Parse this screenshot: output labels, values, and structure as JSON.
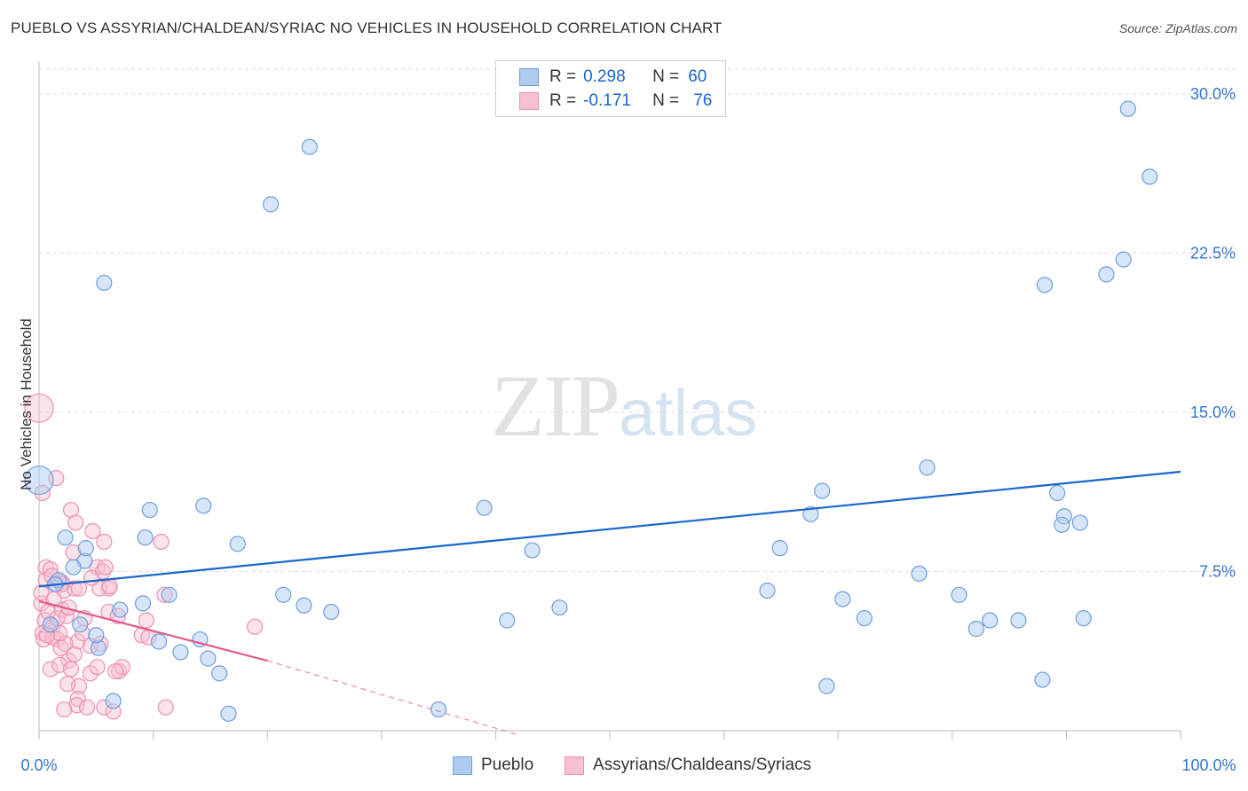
{
  "title": "PUEBLO VS ASSYRIAN/CHALDEAN/SYRIAC NO VEHICLES IN HOUSEHOLD CORRELATION CHART",
  "source": "Source: ZipAtlas.com",
  "watermark": {
    "part1": "ZIP",
    "part2": "atlas"
  },
  "legend": {
    "rows": [
      {
        "r_label": "R =",
        "r_value": "0.298",
        "n_label": "N =",
        "n_value": "60"
      },
      {
        "r_label": "R =",
        "r_value": "-0.171",
        "n_label": "N =",
        "n_value": "76"
      }
    ]
  },
  "bottom_legend": {
    "series1": "Pueblo",
    "series2": "Assyrians/Chaldeans/Syriacs"
  },
  "colors": {
    "pueblo": "#1a66cc",
    "pueblo_fill": "#aecbf0",
    "pueblo_stroke": "#6f9fdc",
    "assyrian": "#e05a8c",
    "assyrian_fill": "#f7c1d3",
    "assyrian_stroke": "#ee90b0",
    "grid": "#dddddd",
    "tick_label": "#3375cc"
  },
  "chart_data": {
    "type": "scatter",
    "title": "PUEBLO VS ASSYRIAN/CHALDEAN/SYRIAC NO VEHICLES IN HOUSEHOLD CORRELATION CHART",
    "xlabel": "",
    "ylabel": "No Vehicles in Household",
    "xlim": [
      0,
      100
    ],
    "ylim": [
      0,
      31.5
    ],
    "x_tick_labels": [
      "0.0%",
      "100.0%"
    ],
    "y_ticks": [
      7.5,
      15.0,
      22.5,
      30.0
    ],
    "y_tick_labels": [
      "7.5%",
      "15.0%",
      "22.5%",
      "30.0%"
    ],
    "grid": "horizontal dashed",
    "legend_position": "top-center",
    "series": [
      {
        "name": "Pueblo",
        "r": 0.298,
        "n": 60,
        "trend": {
          "x": [
            0,
            100
          ],
          "y": [
            6.8,
            12.2
          ]
        },
        "points": [
          [
            0,
            11.8
          ],
          [
            5.7,
            21.1
          ],
          [
            20.3,
            24.8
          ],
          [
            23.7,
            27.5
          ],
          [
            95.4,
            29.3
          ],
          [
            97.3,
            26.1
          ],
          [
            95.0,
            22.2
          ],
          [
            93.5,
            21.5
          ],
          [
            88.1,
            21.0
          ],
          [
            2.3,
            9.1
          ],
          [
            1.7,
            7.1
          ],
          [
            1.4,
            6.9
          ],
          [
            4.0,
            8.0
          ],
          [
            4.1,
            8.6
          ],
          [
            3.0,
            7.7
          ],
          [
            1.0,
            5.0
          ],
          [
            3.6,
            5.0
          ],
          [
            5.2,
            3.9
          ],
          [
            6.5,
            1.4
          ],
          [
            7.1,
            5.7
          ],
          [
            9.1,
            6.0
          ],
          [
            9.3,
            9.1
          ],
          [
            9.7,
            10.4
          ],
          [
            10.5,
            4.2
          ],
          [
            11.4,
            6.4
          ],
          [
            12.4,
            3.7
          ],
          [
            14.1,
            4.3
          ],
          [
            14.4,
            10.6
          ],
          [
            14.8,
            3.4
          ],
          [
            15.8,
            2.7
          ],
          [
            16.6,
            0.8
          ],
          [
            17.4,
            8.8
          ],
          [
            21.4,
            6.4
          ],
          [
            23.2,
            5.9
          ],
          [
            25.6,
            5.6
          ],
          [
            35.0,
            1.0
          ],
          [
            39.0,
            10.5
          ],
          [
            41.0,
            5.2
          ],
          [
            43.2,
            8.5
          ],
          [
            45.6,
            5.8
          ],
          [
            63.8,
            6.6
          ],
          [
            64.9,
            8.6
          ],
          [
            67.6,
            10.2
          ],
          [
            68.6,
            11.3
          ],
          [
            69.0,
            2.1
          ],
          [
            70.4,
            6.2
          ],
          [
            72.3,
            5.3
          ],
          [
            77.1,
            7.4
          ],
          [
            77.8,
            12.4
          ],
          [
            80.6,
            6.4
          ],
          [
            82.1,
            4.8
          ],
          [
            83.3,
            5.2
          ],
          [
            85.8,
            5.2
          ],
          [
            87.9,
            2.4
          ],
          [
            89.2,
            11.2
          ],
          [
            89.8,
            10.1
          ],
          [
            89.6,
            9.7
          ],
          [
            91.2,
            9.8
          ],
          [
            91.5,
            5.3
          ],
          [
            5.0,
            4.5
          ]
        ]
      },
      {
        "name": "Assyrians/Chaldeans/Syriacs",
        "r": -0.171,
        "n": 76,
        "trend": {
          "x": [
            0,
            20
          ],
          "y": [
            6.1,
            3.3
          ]
        },
        "trend_dashed": {
          "x": [
            20,
            42
          ],
          "y": [
            3.3,
            -0.2
          ]
        },
        "points": [
          [
            0,
            15.2
          ],
          [
            0.3,
            11.2
          ],
          [
            1.5,
            11.9
          ],
          [
            2.8,
            10.4
          ],
          [
            3.2,
            9.8
          ],
          [
            4.7,
            9.4
          ],
          [
            5.7,
            8.9
          ],
          [
            10.7,
            8.9
          ],
          [
            0.6,
            7.7
          ],
          [
            0.6,
            7.1
          ],
          [
            1.0,
            7.6
          ],
          [
            1.1,
            7.3
          ],
          [
            1.5,
            6.9
          ],
          [
            2.0,
            7.0
          ],
          [
            2.2,
            6.6
          ],
          [
            3.0,
            8.4
          ],
          [
            3.1,
            6.7
          ],
          [
            3.5,
            6.7
          ],
          [
            5.1,
            7.7
          ],
          [
            5.6,
            7.5
          ],
          [
            5.8,
            7.7
          ],
          [
            6.1,
            6.7
          ],
          [
            5.3,
            6.7
          ],
          [
            0.2,
            6.0
          ],
          [
            0.5,
            5.2
          ],
          [
            0.8,
            5.6
          ],
          [
            1.0,
            5.0
          ],
          [
            1.2,
            4.9
          ],
          [
            1.6,
            5.3
          ],
          [
            2.0,
            5.7
          ],
          [
            2.4,
            5.4
          ],
          [
            2.6,
            5.8
          ],
          [
            3.4,
            4.2
          ],
          [
            4.5,
            4.0
          ],
          [
            4.6,
            7.2
          ],
          [
            6.1,
            5.6
          ],
          [
            6.9,
            5.4
          ],
          [
            9.0,
            4.5
          ],
          [
            9.4,
            5.2
          ],
          [
            11.0,
            6.4
          ],
          [
            0.3,
            4.6
          ],
          [
            0.4,
            4.3
          ],
          [
            1.2,
            4.4
          ],
          [
            1.6,
            4.3
          ],
          [
            1.9,
            3.9
          ],
          [
            2.3,
            4.1
          ],
          [
            2.6,
            3.3
          ],
          [
            3.1,
            3.6
          ],
          [
            5.4,
            4.1
          ],
          [
            7.0,
            2.8
          ],
          [
            7.3,
            3.0
          ],
          [
            1.0,
            2.9
          ],
          [
            1.8,
            3.1
          ],
          [
            2.8,
            2.9
          ],
          [
            4.5,
            2.7
          ],
          [
            3.5,
            2.1
          ],
          [
            3.4,
            1.5
          ],
          [
            3.3,
            1.2
          ],
          [
            2.2,
            1.0
          ],
          [
            4.2,
            1.1
          ],
          [
            5.7,
            1.1
          ],
          [
            6.5,
            0.9
          ],
          [
            11.1,
            1.1
          ],
          [
            18.9,
            4.9
          ],
          [
            0.2,
            6.5
          ],
          [
            1.3,
            6.2
          ],
          [
            2.0,
            6.9
          ],
          [
            6.2,
            6.8
          ],
          [
            4.0,
            5.3
          ],
          [
            1.8,
            4.6
          ],
          [
            0.7,
            4.5
          ],
          [
            2.5,
            2.2
          ],
          [
            3.8,
            4.6
          ],
          [
            9.6,
            4.4
          ],
          [
            5.1,
            3.0
          ],
          [
            6.7,
            2.8
          ]
        ]
      }
    ]
  }
}
